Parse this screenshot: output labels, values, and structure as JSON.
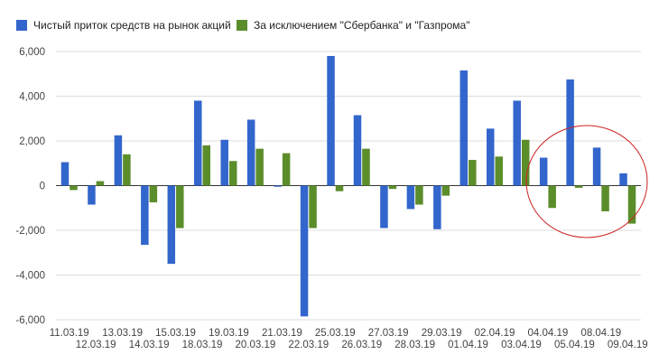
{
  "chart_data": {
    "type": "bar",
    "title": "",
    "xlabel": "",
    "ylabel": "",
    "ylim": [
      -6000,
      6000
    ],
    "yticks": [
      6000,
      4000,
      2000,
      0,
      -2000,
      -4000,
      -6000
    ],
    "ytick_labels": [
      "6,000",
      "4,000",
      "2,000",
      "0",
      "-2,000",
      "-4,000",
      "-6,000"
    ],
    "grid": "horizontal",
    "legend_position": "top-left",
    "categories": [
      "11.03.19",
      "12.03.19",
      "13.03.19",
      "14.03.19",
      "15.03.19",
      "18.03.19",
      "19.03.19",
      "20.03.19",
      "21.03.19",
      "22.03.19",
      "25.03.19",
      "26.03.19",
      "27.03.19",
      "28.03.19",
      "29.03.19",
      "01.04.19",
      "02.04.19",
      "03.04.19",
      "04.04.19",
      "05.04.19",
      "08.04.19",
      "09.04.19"
    ],
    "series": [
      {
        "name": "Чистый приток средств на рынок акций",
        "color": "#3366cc",
        "values": [
          1050,
          -850,
          2250,
          -2650,
          -3500,
          3800,
          2050,
          2950,
          -50,
          -5850,
          5800,
          3150,
          -1900,
          -1050,
          -1950,
          5150,
          2550,
          3800,
          1250,
          4750,
          1700,
          550
        ]
      },
      {
        "name": "За исключением \"Сбербанка\" и \"Газпрома\"",
        "color": "#5c8d2b",
        "values": [
          -200,
          200,
          1400,
          -750,
          -1900,
          1800,
          1100,
          1650,
          1450,
          -1900,
          -250,
          1650,
          -150,
          -850,
          -450,
          1150,
          1300,
          2050,
          -1000,
          -100,
          -1150,
          -1700
        ]
      }
    ],
    "annotation": {
      "shape": "ellipse",
      "color": "#cc2222",
      "highlights": [
        "04.04.19",
        "05.04.19",
        "08.04.19",
        "09.04.19"
      ]
    }
  }
}
